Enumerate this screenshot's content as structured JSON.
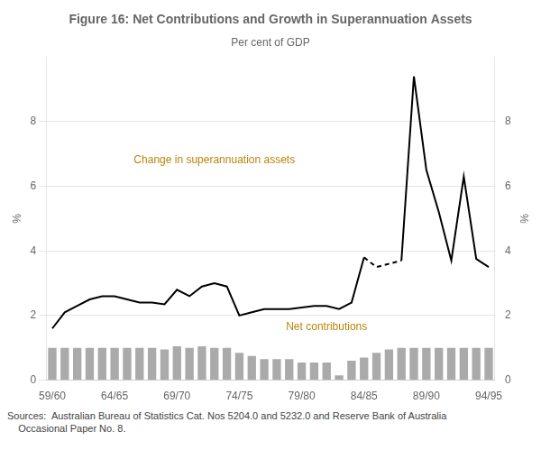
{
  "chart_data": {
    "type": "bar",
    "title": "Figure 16: Net Contributions and Growth in Superannuation Assets",
    "subtitle": "Per cent of GDP",
    "footnote": "Sources:  Australian Bureau of Statistics Cat. Nos 5204.0 and 5232.0 and Reserve Bank of Australia\n    Occasional Paper No. 8.",
    "ylabel": "%",
    "y2label": "%",
    "categories": [
      "59/60",
      null,
      null,
      null,
      null,
      "64/65",
      null,
      null,
      null,
      null,
      "69/70",
      null,
      null,
      null,
      null,
      "74/75",
      null,
      null,
      null,
      null,
      "79/80",
      null,
      null,
      null,
      null,
      "84/85",
      null,
      null,
      null,
      null,
      "89/90",
      null,
      null,
      null,
      null,
      "94/95"
    ],
    "series": [
      {
        "type": "bar",
        "color": "#aaaaaa",
        "values": [
          1.0,
          1.0,
          1.0,
          1.0,
          1.0,
          1.0,
          1.0,
          1.0,
          1.0,
          0.95,
          1.05,
          1.0,
          1.05,
          1.0,
          1.0,
          0.85,
          0.75,
          0.65,
          0.65,
          0.65,
          0.55,
          0.55,
          0.55,
          0.15,
          0.6,
          0.7,
          0.85,
          0.95,
          1.0,
          1.0,
          1.0,
          1.0,
          1.0,
          1.0,
          1.0,
          1.0
        ]
      },
      {
        "type": "line",
        "color": "#000000",
        "line_style": "solid",
        "values": [
          1.6,
          2.1,
          2.3,
          2.5,
          2.6,
          2.6,
          2.5,
          2.4,
          2.4,
          2.35,
          2.8,
          2.6,
          2.9,
          3.0,
          2.9,
          2.0,
          2.1,
          2.2,
          2.2,
          2.2,
          2.25,
          2.3,
          2.3,
          2.2,
          2.4,
          3.8,
          null,
          null,
          null,
          null,
          null,
          null,
          null,
          null,
          null,
          null
        ]
      },
      {
        "type": "line",
        "color": "#000000",
        "line_style": "dashed",
        "values": [
          null,
          null,
          null,
          null,
          null,
          null,
          null,
          null,
          null,
          null,
          null,
          null,
          null,
          null,
          null,
          null,
          null,
          null,
          null,
          null,
          null,
          null,
          null,
          null,
          null,
          3.8,
          3.5,
          3.6,
          3.7,
          null,
          null,
          null,
          null,
          null,
          null,
          null
        ]
      },
      {
        "type": "line",
        "color": "#000000",
        "line_style": "solid",
        "values": [
          null,
          null,
          null,
          null,
          null,
          null,
          null,
          null,
          null,
          null,
          null,
          null,
          null,
          null,
          null,
          null,
          null,
          null,
          null,
          null,
          null,
          null,
          null,
          null,
          null,
          null,
          null,
          null,
          3.7,
          9.4,
          6.5,
          5.2,
          3.7,
          6.3,
          3.75,
          3.5
        ]
      }
    ],
    "ylim": [
      0,
      10
    ],
    "yticks": [
      0,
      2,
      4,
      6,
      8
    ],
    "y2lim": [
      0,
      10
    ],
    "y2ticks": [
      0,
      2,
      4,
      6,
      8
    ],
    "grid": true,
    "annotations": [
      {
        "text": "Change in superannuation assets",
        "x": 13,
        "y": 6.8,
        "color": "#b8860b"
      },
      {
        "text": "Net contributions",
        "x": 22,
        "y": 1.65,
        "color": "#b8860b"
      }
    ]
  }
}
